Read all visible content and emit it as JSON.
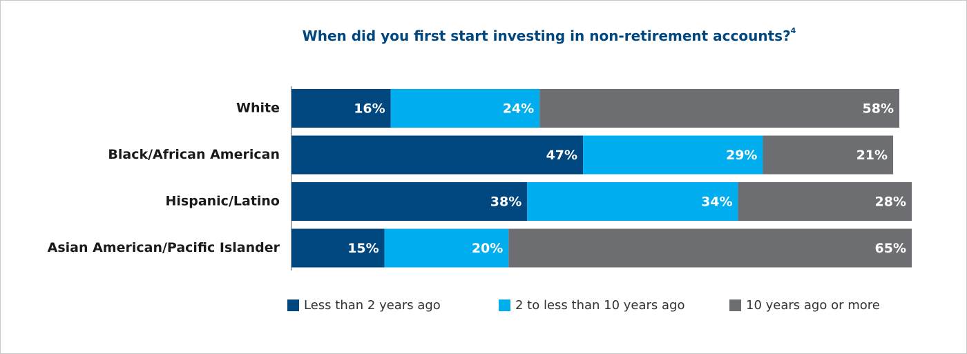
{
  "chart_data": {
    "type": "stacked-bar-horizontal",
    "title": "When did you first start investing in non-retirement accounts?",
    "title_superscript": "4",
    "categories": [
      "White",
      "Black/African American",
      "Hispanic/Latino",
      "Asian American/Pacific Islander"
    ],
    "series": [
      {
        "name": "Less than 2 years ago",
        "color": "#00467f",
        "values": [
          16,
          47,
          38,
          15
        ],
        "value_labels": [
          "16%",
          "47%",
          "38%",
          "15%"
        ]
      },
      {
        "name": "2 to less than 10 years ago",
        "color": "#00aeef",
        "values": [
          24,
          29,
          34,
          20
        ],
        "value_labels": [
          "24%",
          "29%",
          "34%",
          "20%"
        ]
      },
      {
        "name": "10 years ago or more",
        "color": "#6d6e71",
        "values": [
          58,
          21,
          28,
          65
        ],
        "value_labels": [
          "58%",
          "21%",
          "28%",
          "65%"
        ]
      }
    ],
    "legend": "bottom"
  }
}
